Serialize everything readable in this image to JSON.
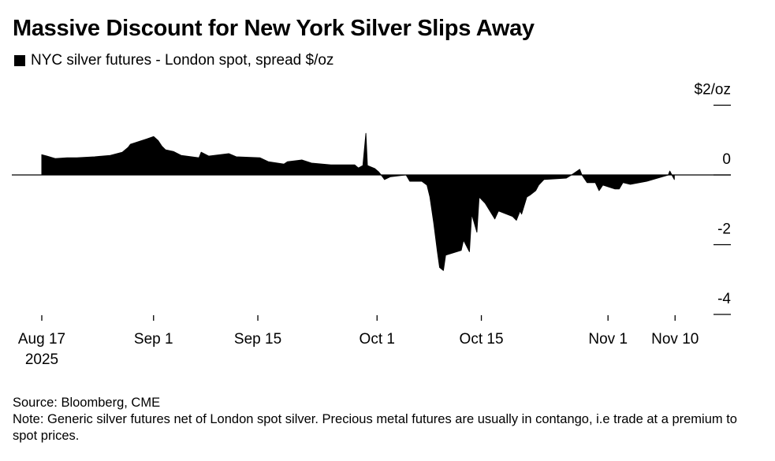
{
  "title": "Massive Discount for New York Silver Slips Away",
  "legend": "NYC silver futures - London spot, spread $/oz",
  "source": "Source: Bloomberg, CME",
  "note": "Note: Generic silver futures net of London spot silver. Precious metal futures are usually in contango, i.e trade at a premium to spot prices.",
  "chart_data": {
    "type": "area",
    "title": "Massive Discount for New York Silver Slips Away",
    "series_name": "NYC silver futures - London spot, spread $/oz",
    "x_unit": "days since 2025-08-17",
    "ylim": [
      -4,
      2
    ],
    "yticks": [
      {
        "v": 2,
        "label": "$2/oz"
      },
      {
        "v": 0,
        "label": "0"
      },
      {
        "v": -2,
        "label": "-2"
      },
      {
        "v": -4,
        "label": "-4"
      }
    ],
    "xticks": [
      {
        "d": 0,
        "label": "Aug 17",
        "sub": "2025"
      },
      {
        "d": 15,
        "label": "Sep 1"
      },
      {
        "d": 29,
        "label": "Sep 15"
      },
      {
        "d": 45,
        "label": "Oct 1"
      },
      {
        "d": 59,
        "label": "Oct 15"
      },
      {
        "d": 76,
        "label": "Nov 1"
      },
      {
        "d": 85,
        "label": "Nov 10"
      }
    ],
    "color": "#000000",
    "points": [
      [
        0,
        0.58
      ],
      [
        0.7,
        0.54
      ],
      [
        1.8,
        0.47
      ],
      [
        3.4,
        0.49
      ],
      [
        4.7,
        0.49
      ],
      [
        7.1,
        0.52
      ],
      [
        9.2,
        0.56
      ],
      [
        10.8,
        0.65
      ],
      [
        11.6,
        0.79
      ],
      [
        11.9,
        0.88
      ],
      [
        14.1,
        1.03
      ],
      [
        15,
        1.1
      ],
      [
        15.6,
        0.99
      ],
      [
        16.1,
        0.83
      ],
      [
        16.6,
        0.72
      ],
      [
        17.7,
        0.67
      ],
      [
        18.7,
        0.56
      ],
      [
        21.1,
        0.49
      ],
      [
        21.4,
        0.65
      ],
      [
        22.4,
        0.54
      ],
      [
        25.1,
        0.61
      ],
      [
        26.1,
        0.52
      ],
      [
        29.3,
        0.49
      ],
      [
        30.4,
        0.38
      ],
      [
        32.5,
        0.31
      ],
      [
        33,
        0.38
      ],
      [
        34.9,
        0.43
      ],
      [
        36.2,
        0.34
      ],
      [
        38.8,
        0.29
      ],
      [
        42,
        0.29
      ],
      [
        42.5,
        0.2
      ],
      [
        43.1,
        0.27
      ],
      [
        43.5,
        1.19
      ],
      [
        43.7,
        0.27
      ],
      [
        44.7,
        0.18
      ],
      [
        45.2,
        0.09
      ],
      [
        45.8,
        -0.07
      ],
      [
        46,
        -0.13
      ],
      [
        46.8,
        -0.05
      ],
      [
        48.9,
        0
      ],
      [
        49.4,
        -0.18
      ],
      [
        51,
        -0.18
      ],
      [
        51.7,
        -0.29
      ],
      [
        52.1,
        -0.63
      ],
      [
        52.6,
        -1.37
      ],
      [
        53.1,
        -2.2
      ],
      [
        53.4,
        -2.65
      ],
      [
        53.9,
        -2.74
      ],
      [
        54.2,
        -2.3
      ],
      [
        56.3,
        -2.16
      ],
      [
        56.6,
        -1.87
      ],
      [
        57.4,
        -2.2
      ],
      [
        57.7,
        -1.12
      ],
      [
        58.4,
        -1.64
      ],
      [
        58.7,
        -0.63
      ],
      [
        59.5,
        -0.81
      ],
      [
        60.8,
        -1.26
      ],
      [
        61.3,
        -1.03
      ],
      [
        63.2,
        -1.19
      ],
      [
        63.7,
        -1.3
      ],
      [
        64.2,
        -1.03
      ],
      [
        64.4,
        -1.12
      ],
      [
        65.1,
        -0.63
      ],
      [
        65.5,
        -0.58
      ],
      [
        66.3,
        -0.45
      ],
      [
        66.7,
        -0.29
      ],
      [
        67.4,
        -0.13
      ],
      [
        70.4,
        -0.09
      ],
      [
        71.1,
        0
      ],
      [
        72.2,
        0.16
      ],
      [
        72.5,
        0
      ],
      [
        73.2,
        -0.22
      ],
      [
        74.3,
        -0.22
      ],
      [
        74.8,
        -0.45
      ],
      [
        75.3,
        -0.29
      ],
      [
        76.9,
        -0.4
      ],
      [
        77.5,
        -0.4
      ],
      [
        78,
        -0.22
      ],
      [
        79,
        -0.27
      ],
      [
        81.2,
        -0.18
      ],
      [
        84.1,
        0
      ],
      [
        84.3,
        0.11
      ],
      [
        84.9,
        -0.13
      ]
    ]
  }
}
